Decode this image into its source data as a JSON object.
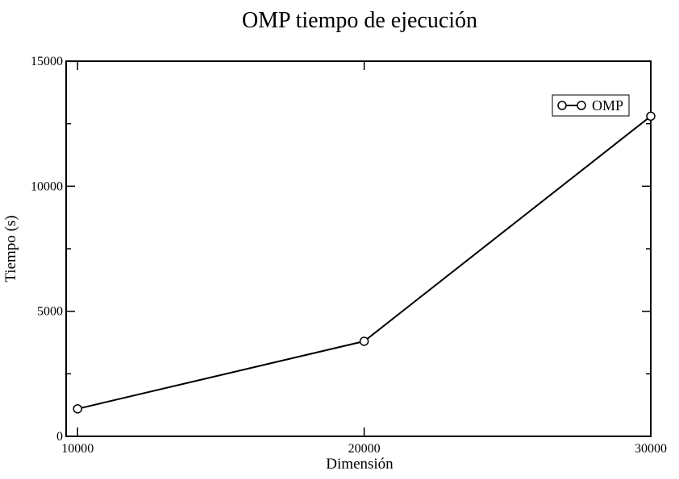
{
  "chart_data": {
    "type": "line",
    "title": "OMP tiempo de ejecución",
    "xlabel": "Dimensión",
    "ylabel": "Tiempo (s)",
    "xlim": [
      9600,
      30000
    ],
    "ylim": [
      0,
      15000
    ],
    "xticks": [
      10000,
      20000,
      30000
    ],
    "yticks": [
      0,
      5000,
      10000,
      15000
    ],
    "grid": false,
    "legend_position": "top-right",
    "series": [
      {
        "name": "OMP",
        "marker": "circle",
        "color": "#000000",
        "x": [
          10000,
          20000,
          30000
        ],
        "y": [
          1100,
          3800,
          12800
        ]
      }
    ]
  }
}
